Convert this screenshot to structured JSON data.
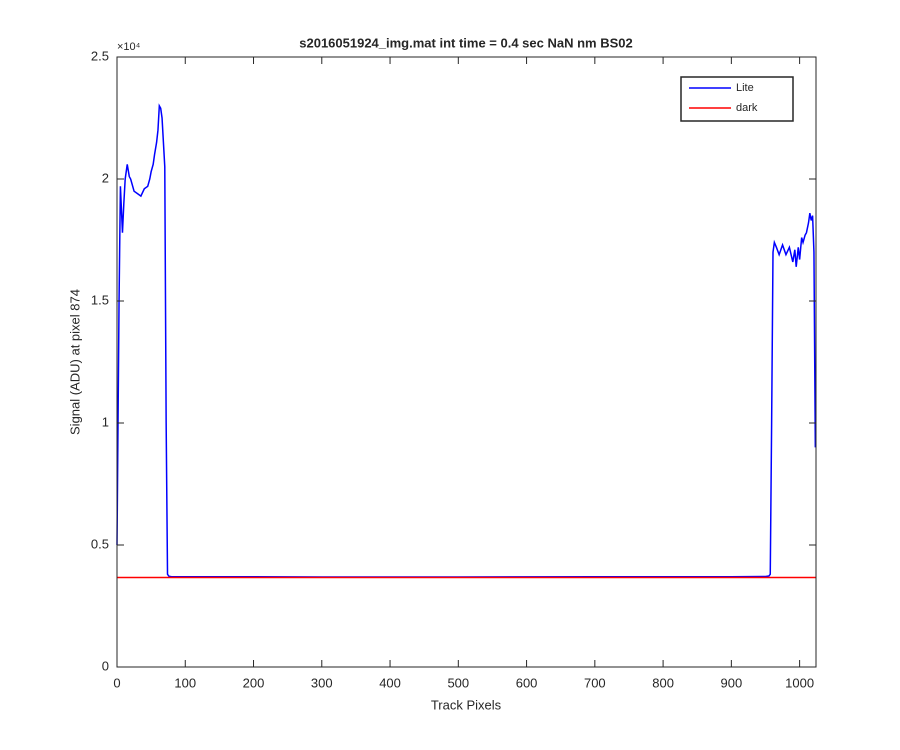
{
  "chart_data": {
    "type": "line",
    "title": "s2016051924_img.mat int time = 0.4 sec  NaN nm BS02",
    "x_label": "Track Pixels",
    "y_label": "Signal (ADU) at pixel 874",
    "y_multiplier": "×10⁴",
    "xlim": [
      0,
      1024
    ],
    "xticks": [
      0,
      100,
      200,
      300,
      400,
      500,
      600,
      700,
      800,
      900,
      1000
    ],
    "ylim": [
      0,
      25000
    ],
    "yticks": [
      0,
      {
        "value": 5000,
        "label": "0.5"
      },
      {
        "value": 10000,
        "label": "1"
      },
      {
        "value": 15000,
        "label": "1.5"
      },
      {
        "value": 20000,
        "label": "2"
      },
      {
        "value": 25000,
        "label": "2.5"
      }
    ],
    "grid": false,
    "legend_position": "upper-right",
    "series": [
      {
        "name": "Lite",
        "color": "#0000ff",
        "x": [
          0,
          3,
          5,
          8,
          10,
          12,
          15,
          18,
          20,
          25,
          30,
          35,
          40,
          45,
          48,
          50,
          53,
          55,
          58,
          60,
          62,
          64,
          66,
          68,
          70,
          72,
          74,
          76,
          80,
          150,
          300,
          500,
          700,
          900,
          950,
          955,
          957,
          959,
          961,
          963,
          966,
          970,
          975,
          980,
          985,
          990,
          993,
          995,
          998,
          1000,
          1003,
          1005,
          1008,
          1010,
          1013,
          1015,
          1017,
          1019,
          1021,
          1023
        ],
        "values": [
          5000,
          15000,
          19700,
          17800,
          19000,
          20000,
          20600,
          20100,
          20000,
          19500,
          19400,
          19300,
          19600,
          19700,
          20000,
          20300,
          20600,
          21000,
          21500,
          22000,
          23000,
          22900,
          22500,
          21500,
          20500,
          10000,
          3800,
          3720,
          3700,
          3700,
          3690,
          3690,
          3700,
          3700,
          3710,
          3730,
          3800,
          10000,
          17000,
          17400,
          17200,
          16900,
          17300,
          16900,
          17200,
          16600,
          17100,
          16400,
          17200,
          16700,
          17600,
          17400,
          17700,
          17800,
          18200,
          18600,
          18300,
          18500,
          17000,
          9000
        ]
      },
      {
        "name": "dark",
        "color": "#ff0000",
        "x": [
          0,
          1024
        ],
        "values": [
          3670,
          3670
        ]
      }
    ]
  }
}
